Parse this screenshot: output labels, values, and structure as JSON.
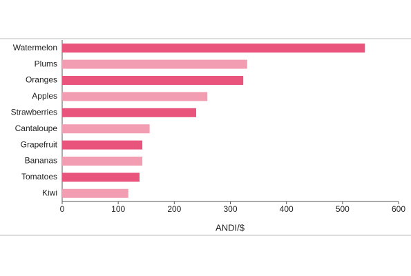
{
  "chart_data": {
    "type": "barh",
    "categories": [
      "Watermelon",
      "Plums",
      "Oranges",
      "Apples",
      "Strawberries",
      "Cantaloupe",
      "Grapefruit",
      "Bananas",
      "Tomatoes",
      "Kiwi"
    ],
    "values": [
      540,
      330,
      323,
      259,
      239,
      156,
      143,
      143,
      138,
      118
    ],
    "colors": [
      "#e8547c",
      "#f29db1",
      "#e8547c",
      "#f29db1",
      "#e8547c",
      "#f29db1",
      "#e8547c",
      "#f29db1",
      "#e8547c",
      "#f29db1"
    ],
    "x_label": "ANDI/$",
    "xlim": [
      0,
      600
    ],
    "xticks": [
      0,
      100,
      200,
      300,
      400,
      500,
      600
    ]
  }
}
